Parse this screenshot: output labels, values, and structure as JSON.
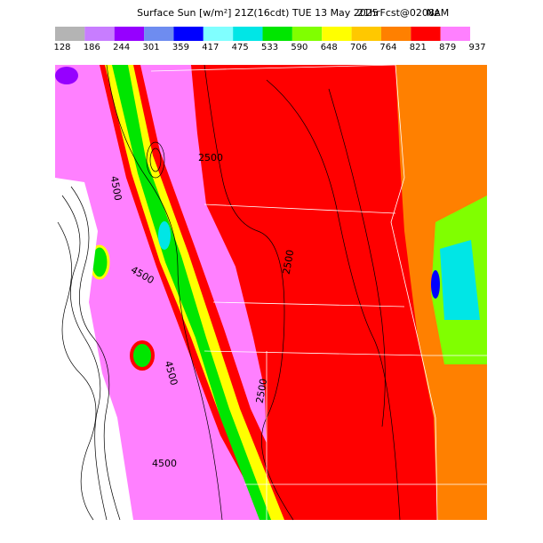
{
  "header": {
    "title": "Surface Sun [w/m²] 21Z(16cdt) TUE 13 May 2025",
    "subtitle": "21hrFcst@0208z",
    "model": "NAM"
  },
  "colorbar": {
    "labels": [
      128,
      186,
      244,
      301,
      359,
      417,
      475,
      533,
      590,
      648,
      706,
      764,
      821,
      879,
      937
    ],
    "colors": [
      "#b4b4b4",
      "#c87dff",
      "#9600ff",
      "#6e8cf0",
      "#0000ff",
      "#80ffff",
      "#00e6e6",
      "#00e600",
      "#80ff00",
      "#ffff00",
      "#ffc800",
      "#ff8000",
      "#ff0000",
      "#ff80ff"
    ]
  },
  "contour_labels": [
    "2500",
    "2500",
    "2500",
    "4500",
    "4500",
    "4500",
    "4500"
  ]
}
